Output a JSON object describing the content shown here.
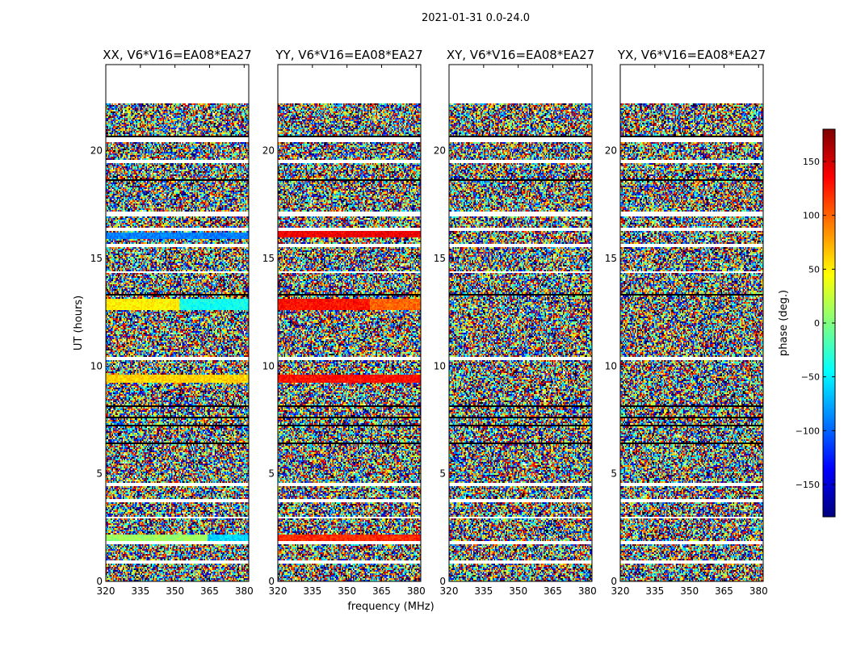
{
  "figure_title": "2021-01-31 0.0-24.0",
  "colorbar": {
    "label": "phase (deg.)",
    "min": -180,
    "max": 180,
    "ticks": [
      -150,
      -100,
      -50,
      0,
      50,
      100,
      150
    ],
    "tick_labels": [
      "−150",
      "−100",
      "−50",
      "0",
      "50",
      "100",
      "150"
    ],
    "colormap": [
      "#00007f",
      "#0000ff",
      "#0080ff",
      "#00ffff",
      "#80ff80",
      "#ffff00",
      "#ff8000",
      "#ff0000",
      "#7f0000"
    ]
  },
  "chart_data": {
    "type": "heatmap",
    "xlabel": "frequency (MHz)",
    "ylabel": "UT (hours)",
    "xlim": [
      320,
      382
    ],
    "ylim": [
      0,
      24
    ],
    "xticks": [
      320,
      335,
      350,
      365,
      380
    ],
    "yticks": [
      0,
      5,
      10,
      15,
      20
    ],
    "panels": [
      {
        "title": "XX, V6*V16=EA08*EA27"
      },
      {
        "title": "YY, V6*V16=EA08*EA27"
      },
      {
        "title": "XY, V6*V16=EA08*EA27"
      },
      {
        "title": "YX, V6*V16=EA08*EA27"
      }
    ],
    "data_range_hours": [
      0,
      22.2
    ],
    "flagged_intervals_hours": [
      [
        0.85,
        0.95
      ],
      [
        1.75,
        1.85
      ],
      [
        2.9,
        3.0
      ],
      [
        3.7,
        3.85
      ],
      [
        4.45,
        4.55
      ],
      [
        10.25,
        10.45
      ],
      [
        14.3,
        14.4
      ],
      [
        15.5,
        15.65
      ],
      [
        16.3,
        16.4
      ],
      [
        16.95,
        17.2
      ],
      [
        19.45,
        19.55
      ],
      [
        20.4,
        20.6
      ]
    ],
    "black_intervals_hours": [
      [
        5.3,
        5.35
      ],
      [
        5.9,
        5.95
      ],
      [
        6.4,
        6.45
      ],
      [
        6.8,
        6.85
      ],
      [
        7.2,
        7.25
      ],
      [
        7.6,
        7.65
      ],
      [
        8.1,
        8.15
      ],
      [
        8.6,
        8.65
      ],
      [
        9.05,
        9.1
      ],
      [
        13.3,
        13.35
      ],
      [
        18.2,
        18.25
      ],
      [
        18.6,
        18.65
      ],
      [
        20.65,
        20.7
      ],
      [
        21.8,
        21.85
      ]
    ],
    "coherent_bands": [
      {
        "panel": 0,
        "hours": [
          1.9,
          2.2
        ],
        "phase_deg": 10,
        "freq_end": 364,
        "phase_end_deg": -60
      },
      {
        "panel": 0,
        "hours": [
          9.2,
          9.6
        ],
        "phase_deg": 60
      },
      {
        "panel": 0,
        "hours": [
          12.6,
          13.1
        ],
        "phase_deg": 50,
        "freq_end": 352,
        "phase_end_deg": -40
      },
      {
        "panel": 0,
        "hours": [
          15.9,
          16.2
        ],
        "phase_deg": -90
      },
      {
        "panel": 1,
        "hours": [
          1.9,
          2.2
        ],
        "phase_deg": 120
      },
      {
        "panel": 1,
        "hours": [
          9.2,
          9.6
        ],
        "phase_deg": 130
      },
      {
        "panel": 1,
        "hours": [
          12.6,
          13.1
        ],
        "phase_deg": 130,
        "freq_end": 360,
        "phase_end_deg": 100
      },
      {
        "panel": 1,
        "hours": [
          16.0,
          16.3
        ],
        "phase_deg": 140
      }
    ]
  }
}
